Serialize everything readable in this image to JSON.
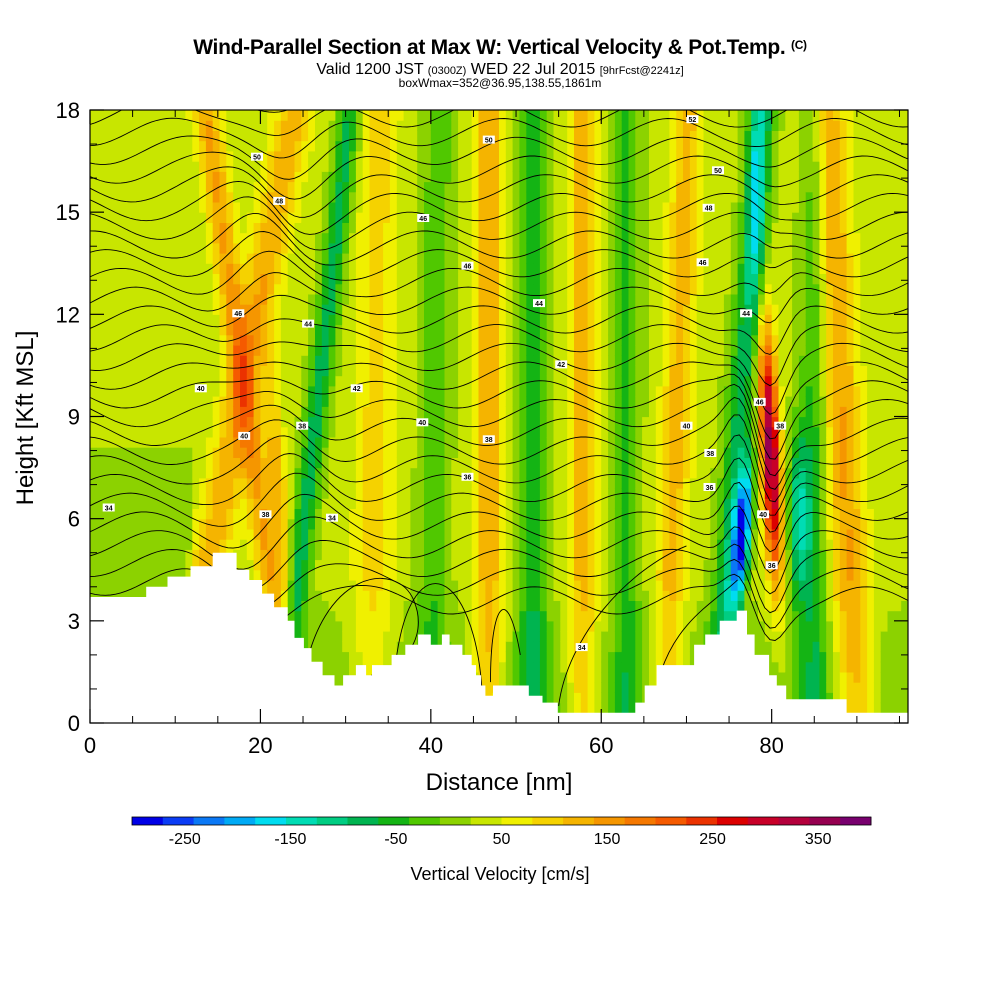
{
  "chart_data": {
    "type": "heatmap",
    "title": "Wind-Parallel Section at Max W: Vertical Velocity & Pot.Temp.",
    "title_mark": "(C)",
    "subtitle_valid": "Valid 1200 JST",
    "subtitle_utc": "(0300Z)",
    "subtitle_date": "WED 22 Jul 2015",
    "subtitle_fcst": "[9hrFcst@2241z]",
    "subtitle_box": "boxWmax=352@36.95,138.55,1861m",
    "xlabel": "Distance [nm]",
    "ylabel": "Height [Kft MSL]",
    "xlim": [
      0,
      96
    ],
    "ylim": [
      0,
      18
    ],
    "x_ticks": [
      "0",
      "20",
      "40",
      "60",
      "80"
    ],
    "y_ticks": [
      "0",
      "3",
      "6",
      "9",
      "12",
      "15",
      "18"
    ],
    "colorbar": {
      "label": "Vertical Velocity [cm/s]",
      "tick_labels": [
        "-250",
        "-150",
        "-50",
        "50",
        "150",
        "250",
        "350"
      ],
      "range": [
        -300,
        400
      ],
      "colors": [
        "#0000e6",
        "#0a3cf5",
        "#0a78f5",
        "#00aaf5",
        "#00dcf0",
        "#00dcb4",
        "#00cd82",
        "#00b450",
        "#14b414",
        "#50c800",
        "#8cd200",
        "#c8e600",
        "#f0f000",
        "#f5d200",
        "#f5b400",
        "#f59600",
        "#f57800",
        "#f55a00",
        "#eb3200",
        "#dc0000",
        "#c80028",
        "#b4003c",
        "#960050",
        "#78006e"
      ]
    },
    "w_features": [
      {
        "x": 14,
        "z_top": 17.0,
        "w": 80
      },
      {
        "x": 20,
        "z_top": 18.0,
        "w": 130
      },
      {
        "x": 24,
        "z_top": 6.0,
        "w": 120
      },
      {
        "x": 23,
        "z_top": 3.0,
        "w": -170
      },
      {
        "x": 27,
        "z_top": 12.0,
        "w": -120
      },
      {
        "x": 34,
        "z_top": 18.0,
        "w": 60
      },
      {
        "x": 47,
        "z_top": 18.0,
        "w": 100
      },
      {
        "x": 52,
        "z_top": 18.0,
        "w": -90
      },
      {
        "x": 58,
        "z_top": 18.0,
        "w": 90
      },
      {
        "x": 70,
        "z_top": 18.0,
        "w": 110
      },
      {
        "x": 76,
        "z_top": 5.0,
        "w": -270
      },
      {
        "x": 80,
        "z_top": 6.5,
        "w": 352
      },
      {
        "x": 78,
        "z_top": 18.0,
        "w": -130
      },
      {
        "x": 84,
        "z_top": 7.0,
        "w": -120
      },
      {
        "x": 90,
        "z_top": 7.0,
        "w": 130
      }
    ],
    "terrain_ft": [
      [
        0,
        3.7
      ],
      [
        6.6,
        3.7
      ],
      [
        6.6,
        4.0
      ],
      [
        9.1,
        4.0
      ],
      [
        9.1,
        4.3
      ],
      [
        11.8,
        4.3
      ],
      [
        11.8,
        4.6
      ],
      [
        14.4,
        4.6
      ],
      [
        14.4,
        5.0
      ],
      [
        17.2,
        5.0
      ],
      [
        17.2,
        4.5
      ],
      [
        18.7,
        4.5
      ],
      [
        18.7,
        4.2
      ],
      [
        20.2,
        4.2
      ],
      [
        20.2,
        3.8
      ],
      [
        21.6,
        3.8
      ],
      [
        21.6,
        3.4
      ],
      [
        23.2,
        3.4
      ],
      [
        23.2,
        3.0
      ],
      [
        24.0,
        3.0
      ],
      [
        24.0,
        2.5
      ],
      [
        25.1,
        2.5
      ],
      [
        25.1,
        2.2
      ],
      [
        26.0,
        2.2
      ],
      [
        26.0,
        1.8
      ],
      [
        27.3,
        1.8
      ],
      [
        27.3,
        1.4
      ],
      [
        28.7,
        1.4
      ],
      [
        28.7,
        1.1
      ],
      [
        29.7,
        1.1
      ],
      [
        29.7,
        1.4
      ],
      [
        31.2,
        1.4
      ],
      [
        31.2,
        1.7
      ],
      [
        32.4,
        1.7
      ],
      [
        32.4,
        1.4
      ],
      [
        33.1,
        1.4
      ],
      [
        33.1,
        1.7
      ],
      [
        35.4,
        1.7
      ],
      [
        35.4,
        2.0
      ],
      [
        37.0,
        2.0
      ],
      [
        37.0,
        2.3
      ],
      [
        38.5,
        2.3
      ],
      [
        38.5,
        2.6
      ],
      [
        40.0,
        2.6
      ],
      [
        40.0,
        2.3
      ],
      [
        41.3,
        2.3
      ],
      [
        41.3,
        2.6
      ],
      [
        42.2,
        2.6
      ],
      [
        42.2,
        2.3
      ],
      [
        43.7,
        2.3
      ],
      [
        43.7,
        2.0
      ],
      [
        44.8,
        2.0
      ],
      [
        44.8,
        1.7
      ],
      [
        45.3,
        1.7
      ],
      [
        45.3,
        1.4
      ],
      [
        45.9,
        1.4
      ],
      [
        45.9,
        1.1
      ],
      [
        46.4,
        1.1
      ],
      [
        46.4,
        0.8
      ],
      [
        47.3,
        0.8
      ],
      [
        47.3,
        1.1
      ],
      [
        51.5,
        1.1
      ],
      [
        51.5,
        0.8
      ],
      [
        53.1,
        0.8
      ],
      [
        53.1,
        0.6
      ],
      [
        54.9,
        0.6
      ],
      [
        54.9,
        0.3
      ],
      [
        64.0,
        0.3
      ],
      [
        64.0,
        0.6
      ],
      [
        65.1,
        0.6
      ],
      [
        65.1,
        1.1
      ],
      [
        66.5,
        1.1
      ],
      [
        66.5,
        1.7
      ],
      [
        70.9,
        1.7
      ],
      [
        70.9,
        2.3
      ],
      [
        72.2,
        2.3
      ],
      [
        72.2,
        2.6
      ],
      [
        73.9,
        2.6
      ],
      [
        73.9,
        3.0
      ],
      [
        75.9,
        3.0
      ],
      [
        75.9,
        3.3
      ],
      [
        77.1,
        3.3
      ],
      [
        77.1,
        2.6
      ],
      [
        78.0,
        2.6
      ],
      [
        78.0,
        2.0
      ],
      [
        79.7,
        2.0
      ],
      [
        79.7,
        1.4
      ],
      [
        80.6,
        1.4
      ],
      [
        80.6,
        1.1
      ],
      [
        81.7,
        1.1
      ],
      [
        81.7,
        0.7
      ],
      [
        88.8,
        0.7
      ],
      [
        88.8,
        0.3
      ],
      [
        96,
        0.3
      ]
    ],
    "contour_labels": [
      {
        "x": 2.2,
        "y": 6.3,
        "text": "34"
      },
      {
        "x": 13.0,
        "y": 9.8,
        "text": "40"
      },
      {
        "x": 18.1,
        "y": 8.4,
        "text": "40"
      },
      {
        "x": 17.4,
        "y": 12.0,
        "text": "46"
      },
      {
        "x": 19.6,
        "y": 16.6,
        "text": "50"
      },
      {
        "x": 22.2,
        "y": 15.3,
        "text": "48"
      },
      {
        "x": 20.6,
        "y": 6.1,
        "text": "38"
      },
      {
        "x": 24.9,
        "y": 8.7,
        "text": "38"
      },
      {
        "x": 25.6,
        "y": 11.7,
        "text": "44"
      },
      {
        "x": 28.4,
        "y": 6.0,
        "text": "34"
      },
      {
        "x": 31.3,
        "y": 9.8,
        "text": "42"
      },
      {
        "x": 39.1,
        "y": 14.8,
        "text": "46"
      },
      {
        "x": 39.0,
        "y": 8.8,
        "text": "40"
      },
      {
        "x": 44.3,
        "y": 13.4,
        "text": "46"
      },
      {
        "x": 44.3,
        "y": 7.2,
        "text": "36"
      },
      {
        "x": 46.8,
        "y": 8.3,
        "text": "38"
      },
      {
        "x": 46.8,
        "y": 17.1,
        "text": "50"
      },
      {
        "x": 52.7,
        "y": 12.3,
        "text": "44"
      },
      {
        "x": 55.3,
        "y": 10.5,
        "text": "42"
      },
      {
        "x": 57.7,
        "y": 2.2,
        "text": "34"
      },
      {
        "x": 70.7,
        "y": 17.7,
        "text": "52"
      },
      {
        "x": 73.7,
        "y": 16.2,
        "text": "50"
      },
      {
        "x": 72.6,
        "y": 15.1,
        "text": "48"
      },
      {
        "x": 71.9,
        "y": 13.5,
        "text": "46"
      },
      {
        "x": 77.0,
        "y": 12.0,
        "text": "44"
      },
      {
        "x": 70.0,
        "y": 8.7,
        "text": "40"
      },
      {
        "x": 72.8,
        "y": 7.9,
        "text": "38"
      },
      {
        "x": 72.7,
        "y": 6.9,
        "text": "36"
      },
      {
        "x": 78.6,
        "y": 9.4,
        "text": "46"
      },
      {
        "x": 81.0,
        "y": 8.7,
        "text": "38"
      },
      {
        "x": 79.0,
        "y": 6.1,
        "text": "40"
      },
      {
        "x": 80.0,
        "y": 4.6,
        "text": "36"
      }
    ]
  }
}
